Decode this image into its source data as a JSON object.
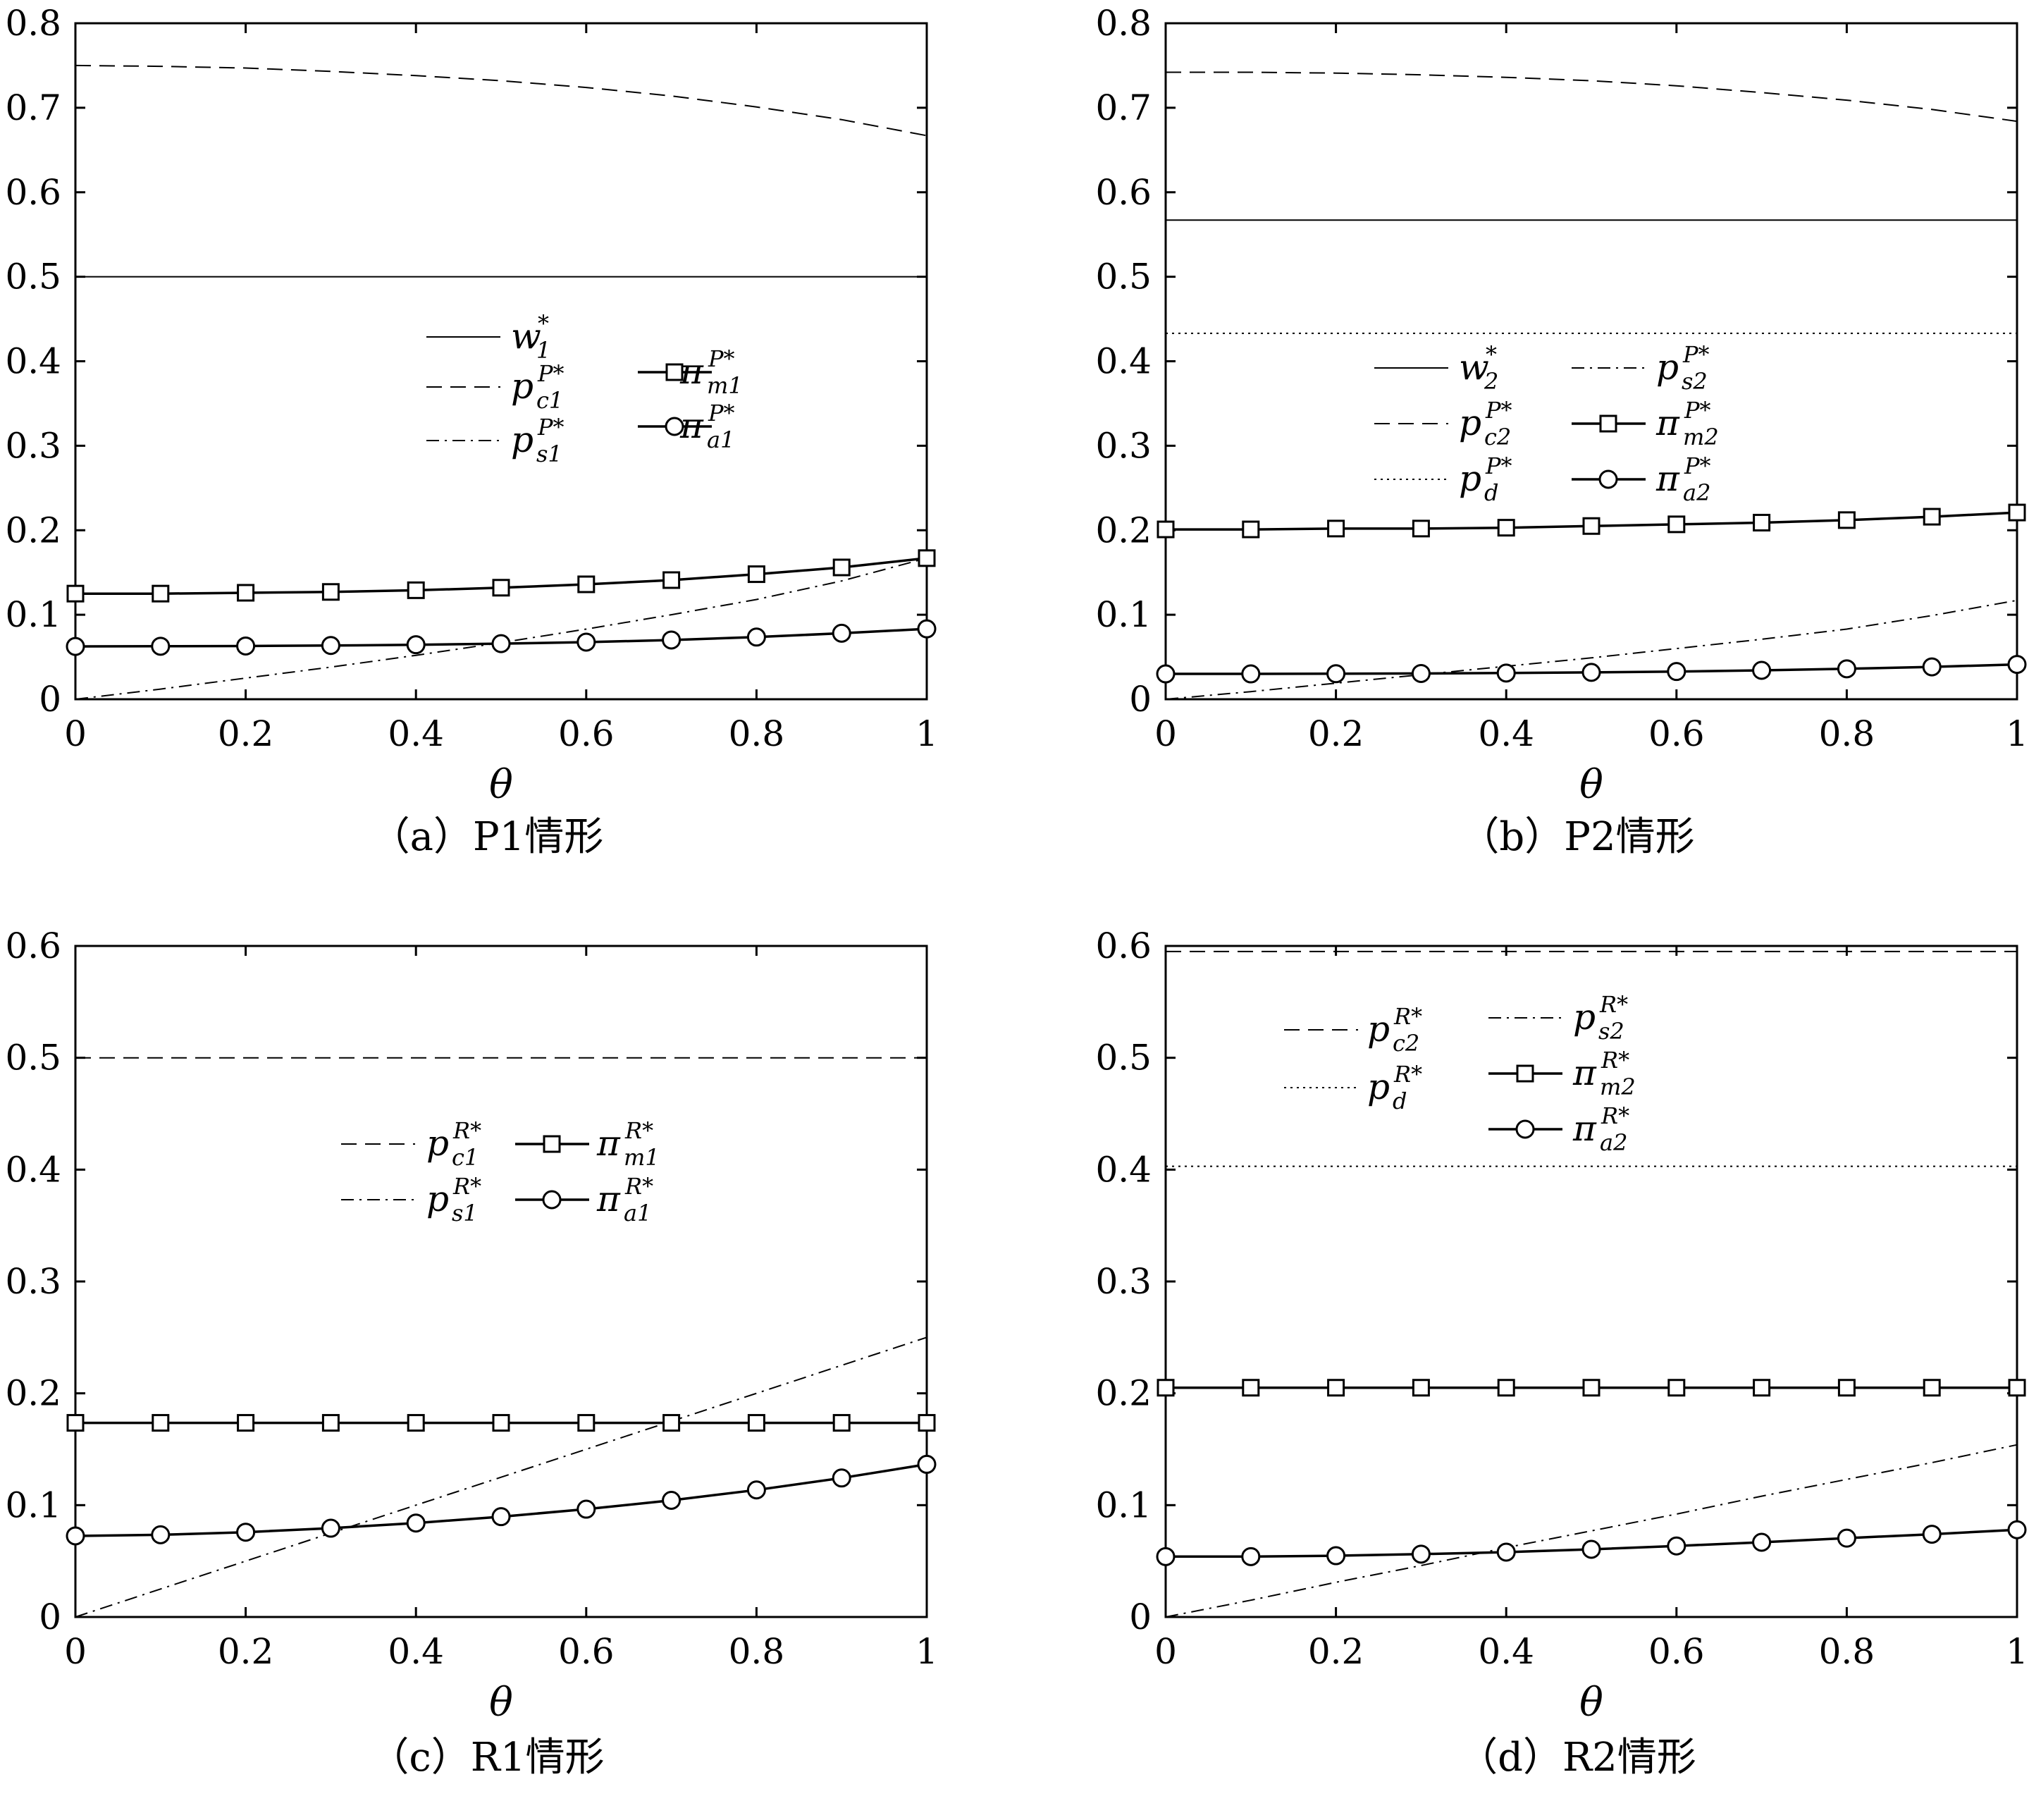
{
  "chart_data": [
    {
      "id": "a",
      "type": "line",
      "caption": "（a）P1情形",
      "xlabel": "θ",
      "xlim": [
        0,
        1
      ],
      "ylim": [
        0,
        0.8
      ],
      "xticks": [
        "0",
        "0.2",
        "0.4",
        "0.6",
        "0.8",
        "1"
      ],
      "yticks": [
        "0",
        "0.1",
        "0.2",
        "0.3",
        "0.4",
        "0.5",
        "0.6",
        "0.7",
        "0.8"
      ],
      "x": [
        0,
        0.1,
        0.2,
        0.3,
        0.4,
        0.5,
        0.6,
        0.7,
        0.8,
        0.9,
        1.0
      ],
      "legend_position": "center",
      "series": [
        {
          "label": "w₁*",
          "main": "w",
          "sup": "*",
          "sub": "1",
          "style": "solid",
          "marker": "none",
          "values": [
            0.5,
            0.5,
            0.5,
            0.5,
            0.5,
            0.5,
            0.5,
            0.5,
            0.5,
            0.5,
            0.5
          ]
        },
        {
          "label": "p_c1^P*",
          "main": "p",
          "sup": "P*",
          "sub": "c1",
          "style": "dashed",
          "marker": "none",
          "values": [
            0.75,
            0.749,
            0.747,
            0.743,
            0.738,
            0.732,
            0.724,
            0.714,
            0.701,
            0.686,
            0.667
          ]
        },
        {
          "label": "p_s1^P*",
          "main": "p",
          "sup": "P*",
          "sub": "s1",
          "style": "dashdot",
          "marker": "none",
          "values": [
            0.0,
            0.012,
            0.025,
            0.038,
            0.052,
            0.067,
            0.083,
            0.1,
            0.118,
            0.14,
            0.167
          ]
        },
        {
          "label": "π_m1^P*",
          "main": "π",
          "sup": "P*",
          "sub": "m1",
          "style": "solid",
          "marker": "square",
          "values": [
            0.125,
            0.125,
            0.126,
            0.127,
            0.129,
            0.132,
            0.136,
            0.141,
            0.148,
            0.156,
            0.167
          ]
        },
        {
          "label": "π_a1^P*",
          "main": "π",
          "sup": "P*",
          "sub": "a1",
          "style": "solid",
          "marker": "circle",
          "values": [
            0.0625,
            0.0627,
            0.063,
            0.0636,
            0.0645,
            0.0658,
            0.0676,
            0.0701,
            0.0736,
            0.0781,
            0.0833
          ]
        }
      ]
    },
    {
      "id": "b",
      "type": "line",
      "caption": "（b）P2情形",
      "xlabel": "θ",
      "xlim": [
        0,
        1
      ],
      "ylim": [
        0,
        0.8
      ],
      "xticks": [
        "0",
        "0.2",
        "0.4",
        "0.6",
        "0.8",
        "1"
      ],
      "yticks": [
        "0",
        "0.1",
        "0.2",
        "0.3",
        "0.4",
        "0.5",
        "0.6",
        "0.7",
        "0.8"
      ],
      "x": [
        0,
        0.1,
        0.2,
        0.3,
        0.4,
        0.5,
        0.6,
        0.7,
        0.8,
        0.9,
        1.0
      ],
      "legend_position": "center",
      "series": [
        {
          "label": "w₂*",
          "main": "w",
          "sup": "*",
          "sub": "2",
          "style": "solid",
          "marker": "none",
          "values": [
            0.567,
            0.567,
            0.567,
            0.567,
            0.567,
            0.567,
            0.567,
            0.567,
            0.567,
            0.567,
            0.567
          ]
        },
        {
          "label": "p_c2^P*",
          "main": "p",
          "sup": "P*",
          "sub": "c2",
          "style": "dashed",
          "marker": "none",
          "values": [
            0.742,
            0.742,
            0.741,
            0.739,
            0.736,
            0.732,
            0.726,
            0.718,
            0.709,
            0.698,
            0.684
          ]
        },
        {
          "label": "p_d^P*",
          "main": "p",
          "sup": "P*",
          "sub": "d",
          "style": "dotted",
          "marker": "none",
          "values": [
            0.433,
            0.433,
            0.433,
            0.433,
            0.433,
            0.433,
            0.433,
            0.433,
            0.433,
            0.433,
            0.433
          ]
        },
        {
          "label": "p_s2^P*",
          "main": "p",
          "sup": "P*",
          "sub": "s2",
          "style": "dashdot",
          "marker": "none",
          "values": [
            0.0,
            0.009,
            0.019,
            0.029,
            0.039,
            0.049,
            0.06,
            0.071,
            0.083,
            0.099,
            0.117
          ]
        },
        {
          "label": "π_m2^P*",
          "main": "π",
          "sup": "P*",
          "sub": "m2",
          "style": "solid",
          "marker": "square",
          "values": [
            0.201,
            0.201,
            0.202,
            0.202,
            0.203,
            0.205,
            0.207,
            0.209,
            0.212,
            0.216,
            0.221
          ]
        },
        {
          "label": "π_a2^P*",
          "main": "π",
          "sup": "P*",
          "sub": "a2",
          "style": "solid",
          "marker": "circle",
          "values": [
            0.03,
            0.03,
            0.0302,
            0.0305,
            0.031,
            0.0318,
            0.0328,
            0.0342,
            0.036,
            0.0383,
            0.0412
          ]
        }
      ]
    },
    {
      "id": "c",
      "type": "line",
      "caption": "（c）R1情形",
      "xlabel": "θ",
      "xlim": [
        0,
        1
      ],
      "ylim": [
        0,
        0.6
      ],
      "xticks": [
        "0",
        "0.2",
        "0.4",
        "0.6",
        "0.8",
        "1"
      ],
      "yticks": [
        "0",
        "0.1",
        "0.2",
        "0.3",
        "0.4",
        "0.5",
        "0.6"
      ],
      "x": [
        0,
        0.1,
        0.2,
        0.3,
        0.4,
        0.5,
        0.6,
        0.7,
        0.8,
        0.9,
        1.0
      ],
      "legend_position": "center",
      "series": [
        {
          "label": "p_c1^R*",
          "main": "p",
          "sup": "R*",
          "sub": "c1",
          "style": "dashed",
          "marker": "none",
          "values": [
            0.5,
            0.5,
            0.5,
            0.5,
            0.5,
            0.5,
            0.5,
            0.5,
            0.5,
            0.5,
            0.5
          ]
        },
        {
          "label": "p_s1^R*",
          "main": "p",
          "sup": "R*",
          "sub": "s1",
          "style": "dashdot",
          "marker": "none",
          "values": [
            0.0,
            0.025,
            0.05,
            0.075,
            0.1,
            0.125,
            0.15,
            0.175,
            0.2,
            0.225,
            0.25
          ]
        },
        {
          "label": "π_m1^R*",
          "main": "π",
          "sup": "R*",
          "sub": "m1",
          "style": "solid",
          "marker": "square",
          "values": [
            0.1736,
            0.1736,
            0.1736,
            0.1736,
            0.1736,
            0.1736,
            0.1736,
            0.1736,
            0.1736,
            0.1736,
            0.1736
          ]
        },
        {
          "label": "π_a1^R*",
          "main": "π",
          "sup": "R*",
          "sub": "a1",
          "style": "solid",
          "marker": "circle",
          "values": [
            0.0725,
            0.0735,
            0.0758,
            0.0794,
            0.084,
            0.0897,
            0.0964,
            0.1043,
            0.1136,
            0.1243,
            0.1365
          ]
        }
      ]
    },
    {
      "id": "d",
      "type": "line",
      "caption": "（d）R2情形",
      "xlabel": "θ",
      "xlim": [
        0,
        1
      ],
      "ylim": [
        0,
        0.6
      ],
      "xticks": [
        "0",
        "0.2",
        "0.4",
        "0.6",
        "0.8",
        "1"
      ],
      "yticks": [
        "0",
        "0.1",
        "0.2",
        "0.3",
        "0.4",
        "0.5",
        "0.6"
      ],
      "x": [
        0,
        0.1,
        0.2,
        0.3,
        0.4,
        0.5,
        0.6,
        0.7,
        0.8,
        0.9,
        1.0
      ],
      "legend_position": "top-left",
      "series": [
        {
          "label": "p_c2^R*",
          "main": "p",
          "sup": "R*",
          "sub": "c2",
          "style": "dashed",
          "marker": "none",
          "values": [
            0.595,
            0.595,
            0.595,
            0.595,
            0.595,
            0.595,
            0.595,
            0.595,
            0.595,
            0.595,
            0.595
          ]
        },
        {
          "label": "p_d^R*",
          "main": "p",
          "sup": "R*",
          "sub": "d",
          "style": "dotted",
          "marker": "none",
          "values": [
            0.403,
            0.403,
            0.403,
            0.403,
            0.403,
            0.403,
            0.403,
            0.403,
            0.403,
            0.403,
            0.403
          ]
        },
        {
          "label": "p_s2^R*",
          "main": "p",
          "sup": "R*",
          "sub": "s2",
          "style": "dashdot",
          "marker": "none",
          "values": [
            0.0,
            0.015,
            0.031,
            0.046,
            0.062,
            0.077,
            0.092,
            0.108,
            0.123,
            0.138,
            0.154
          ]
        },
        {
          "label": "π_m2^R*",
          "main": "π",
          "sup": "R*",
          "sub": "m2",
          "style": "solid",
          "marker": "square",
          "values": [
            0.205,
            0.205,
            0.205,
            0.205,
            0.205,
            0.205,
            0.205,
            0.205,
            0.205,
            0.205,
            0.205
          ]
        },
        {
          "label": "π_a2^R*",
          "main": "π",
          "sup": "R*",
          "sub": "a2",
          "style": "solid",
          "marker": "circle",
          "values": [
            0.054,
            0.054,
            0.0548,
            0.0562,
            0.058,
            0.0605,
            0.0635,
            0.0668,
            0.0705,
            0.074,
            0.078
          ]
        }
      ]
    }
  ]
}
